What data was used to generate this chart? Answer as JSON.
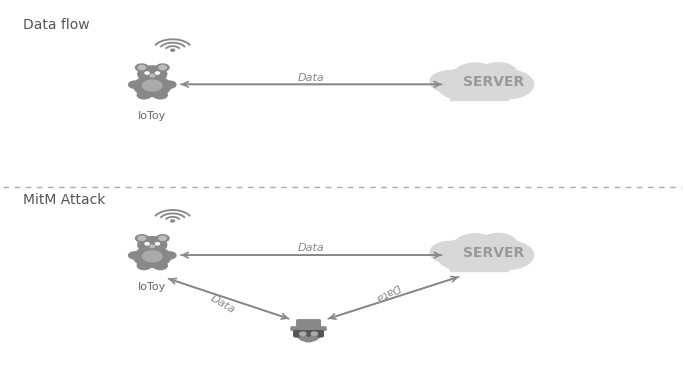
{
  "bg_color": "#ffffff",
  "icon_color": "#888888",
  "cloud_color": "#d8d8d8",
  "arrow_color": "#888888",
  "text_color": "#666666",
  "title_color": "#555555",
  "dashed_line_color": "#aaaaaa",
  "section1_title": "Data flow",
  "section2_title": "MitM Attack",
  "arrow_label": "Data",
  "server_label": "SERVER",
  "toy_label": "IoToy",
  "fig_width": 6.85,
  "fig_height": 3.85
}
